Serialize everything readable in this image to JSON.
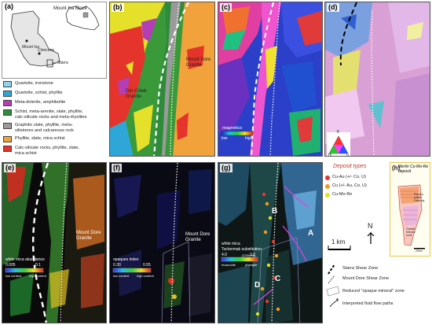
{
  "panels": {
    "a": {
      "label": "(a)",
      "block_name": "Mount Isa Block",
      "town_1": "Mount Isa",
      "town_2": "Cloncurry",
      "target": "Starra"
    },
    "b": {
      "label": "(b)",
      "granite_1": "Gin Creek\nGranite",
      "granite_2": "Mount Dore\nGranite"
    },
    "c": {
      "label": "(c)",
      "bar_title": "magnetics",
      "bar_low": "low",
      "bar_high": "high"
    },
    "d": {
      "label": "(d)",
      "corner_label": "K",
      "tern_th": "Th",
      "tern_u": "U"
    },
    "e": {
      "label": "(e)",
      "granite": "Mount Dore\nGranite",
      "bar_title": "white mica abundance",
      "bar_min": "0.005",
      "bar_max": "0.1",
      "bar_low_text": "low content",
      "bar_high_text": "high content"
    },
    "f": {
      "label": "(f)",
      "granite": "Mount Dore\nGranite",
      "bar_title": "opaques index",
      "bar_min": "0.30",
      "bar_max": "0.55",
      "bar_low_text": "low content",
      "bar_high_text": "high content"
    },
    "g": {
      "label": "(g)",
      "bar_title": "white mica\nTschermak substitution",
      "bar_unit": "(2200nm)",
      "bar_min": "4.0",
      "bar_max": "3.0",
      "bar_low_text": "muscovite",
      "bar_high_text": "phengite",
      "zone_a": "A",
      "zone_b": "B",
      "zone_c": "C",
      "zone_d": "D"
    },
    "h": {
      "label": "(h)",
      "title": "Merlin Cu-Mo-Re\ndeposit",
      "note_1": "Primary\nsulfide\nOrebody",
      "note_2": "Granite\nbreccia\nzone",
      "scale": "200m"
    }
  },
  "geology_legend": [
    {
      "label": "Quartzite, ironstone",
      "color": "#8fd3ef"
    },
    {
      "label": "Quartzite, schist, phyllite",
      "color": "#2ea6d8"
    },
    {
      "label": "Meta-dolerite, amphibolite",
      "color": "#b23fb5"
    },
    {
      "label": "Schist, meta-arenite, slate, phyllite,\ncalc-silicate rocks and meta-rhyolites",
      "color": "#2e8b3a"
    },
    {
      "label": "Graphitic slate, phyllite, meta-\nsiltstones and calcareous rock",
      "color": "#9a9a9a"
    },
    {
      "label": "Phyllite, slate, mica schist",
      "color": "#f2a23a"
    },
    {
      "label": "Calc-silicate rocks, phyllite, slate,\nmica schist",
      "color": "#e5342b"
    }
  ],
  "deposit_types": {
    "title": "Deposit types",
    "items": [
      {
        "label": "Cu-Au (+/- Co, U)",
        "color": "#e23a2a"
      },
      {
        "label": "Cu (+/- Au, Co, U)",
        "color": "#f39a1d"
      },
      {
        "label": "Cu-Mo-Re",
        "color": "#e8e01a"
      }
    ]
  },
  "scale_bar": "1 km",
  "north": "N",
  "line_legend": [
    {
      "label": "Starra Shear Zone"
    },
    {
      "label": "Mount Dore Shear Zone"
    },
    {
      "label": "Reduced \"opaque mineral\" zone"
    },
    {
      "label": "Interpreted fluid flow paths"
    }
  ]
}
